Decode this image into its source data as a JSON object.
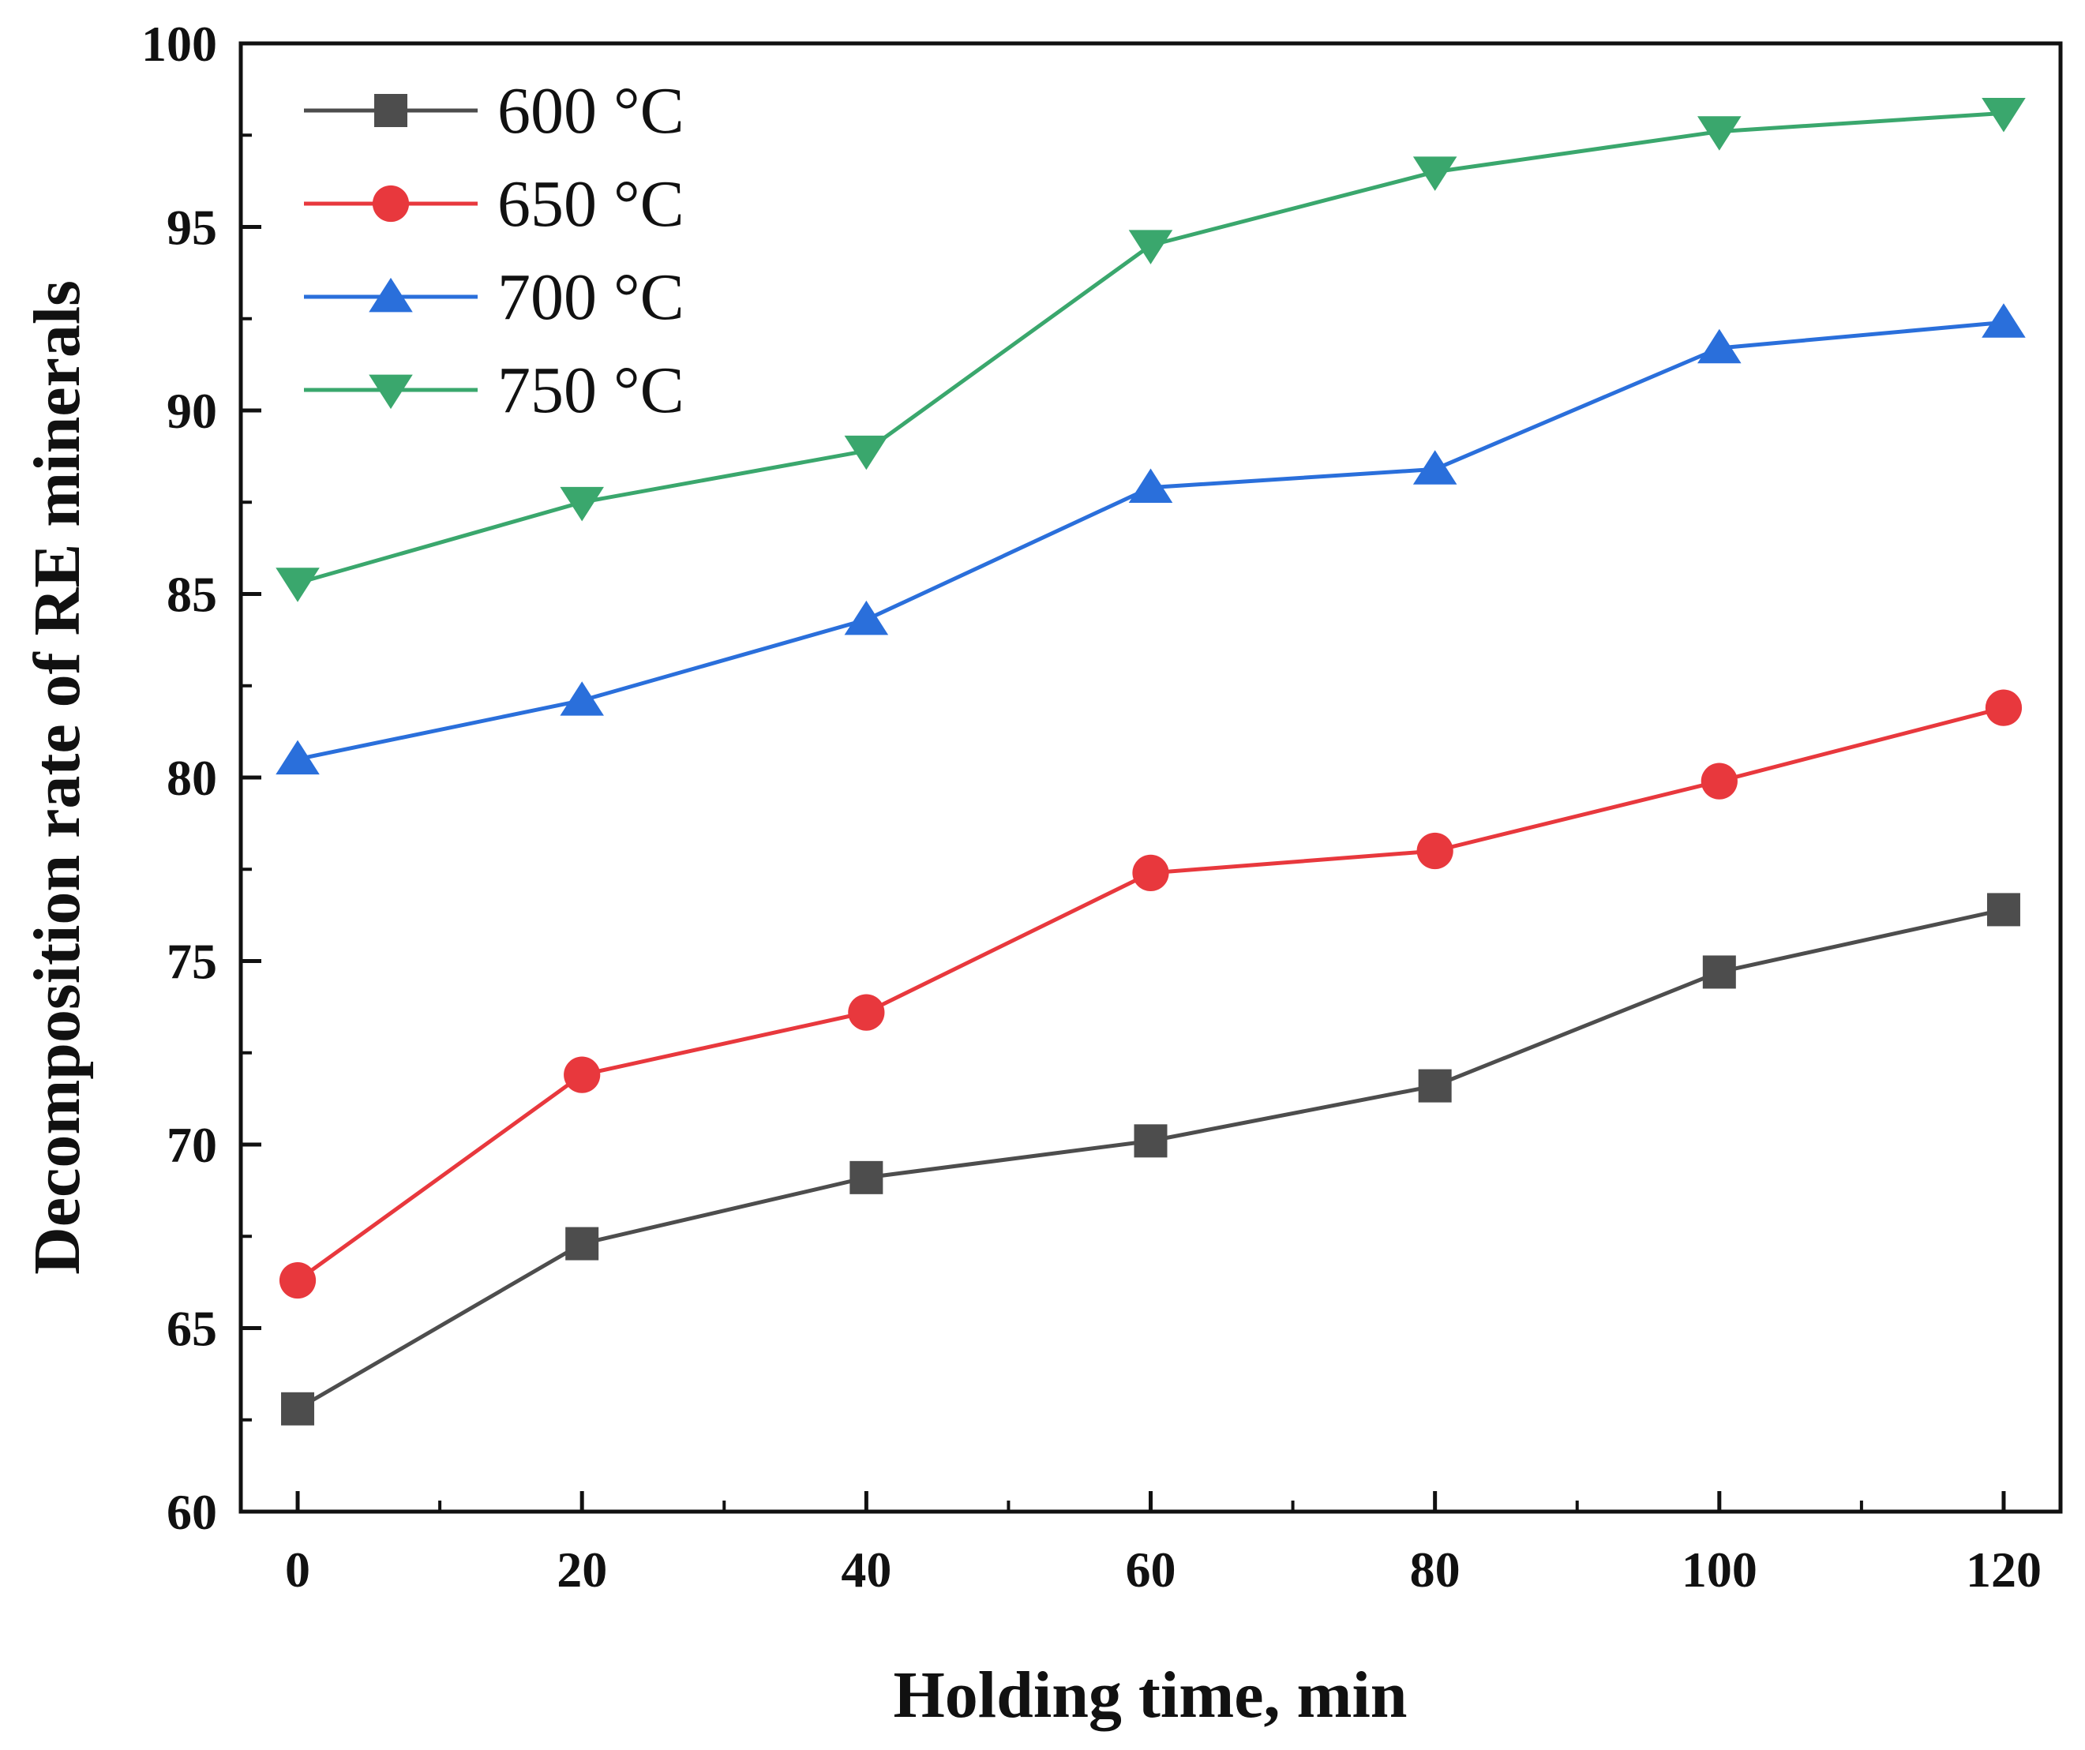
{
  "chart_data": {
    "type": "line",
    "title": "",
    "xlabel": "Holding time, min",
    "ylabel": "Decomposition rate of RE minerals",
    "x": [
      0,
      20,
      40,
      60,
      80,
      100,
      120
    ],
    "xlim": [
      -4,
      124
    ],
    "ylim": [
      60,
      100
    ],
    "xticks": [
      "0",
      "20",
      "40",
      "60",
      "80",
      "100",
      "120"
    ],
    "yticks": [
      "60",
      "65",
      "70",
      "75",
      "80",
      "85",
      "90",
      "95",
      "100"
    ],
    "grid": false,
    "legend_position": "top-left",
    "series": [
      {
        "name": "600 °C",
        "color": "#4d4d4d",
        "marker": "square",
        "values": [
          62.8,
          67.3,
          69.1,
          70.1,
          71.6,
          74.7,
          76.4
        ]
      },
      {
        "name": "650 °C",
        "color": "#e8383d",
        "marker": "circle",
        "values": [
          66.3,
          71.9,
          73.6,
          77.4,
          78.0,
          79.9,
          81.9
        ]
      },
      {
        "name": "700 °C",
        "color": "#2a6fdb",
        "marker": "triangle-up",
        "values": [
          80.5,
          82.1,
          84.3,
          87.9,
          88.4,
          91.7,
          92.4
        ]
      },
      {
        "name": "750 °C",
        "color": "#3aa76d",
        "marker": "triangle-down",
        "values": [
          85.3,
          87.5,
          88.9,
          94.5,
          96.5,
          97.6,
          98.1
        ]
      }
    ]
  }
}
